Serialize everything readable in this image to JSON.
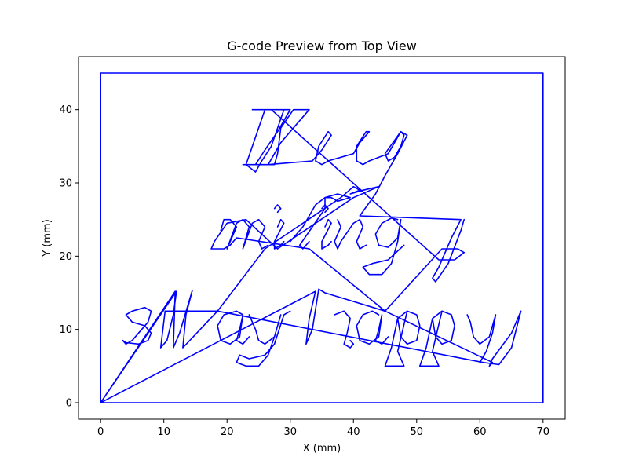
{
  "chart_data": {
    "type": "line",
    "title": "G-code Preview from Top View",
    "xlabel": "X (mm)",
    "ylabel": "Y (mm)",
    "xlim": [
      -3.5,
      73.5
    ],
    "ylim": [
      -2.25,
      47.25
    ],
    "xticks": [
      0,
      10,
      20,
      30,
      40,
      50,
      60,
      70
    ],
    "yticks": [
      0,
      10,
      20,
      30,
      40
    ],
    "grid": false,
    "legend": "none",
    "series_color": "#0000ff",
    "series": [
      {
        "values": [
          [
            0,
            0
          ],
          [
            0,
            45
          ],
          [
            70,
            45
          ],
          [
            70,
            0
          ],
          [
            0,
            0
          ],
          [
            12,
            15.2
          ],
          [
            11.5,
            12
          ],
          [
            10.5,
            8.5
          ],
          [
            9.5,
            7.5
          ],
          [
            10.2,
            12.5
          ],
          [
            18.5,
            12.5
          ],
          [
            13,
            7.5
          ],
          [
            13.5,
            12
          ],
          [
            14.5,
            15.3
          ],
          [
            12.5,
            9.5
          ],
          [
            11.5,
            7.5
          ],
          [
            11.8,
            15.2
          ],
          [
            0,
            0
          ],
          [
            34,
            15.2
          ],
          [
            33,
            11.5
          ],
          [
            32.5,
            8
          ],
          [
            33.5,
            10
          ],
          [
            34.5,
            15.5
          ],
          [
            35.5,
            15
          ],
          [
            45,
            12.5
          ],
          [
            62,
            5.5
          ],
          [
            61.5,
            5
          ],
          [
            62,
            6
          ],
          [
            65,
            9.5
          ],
          [
            66.5,
            12.5
          ],
          [
            65,
            7.5
          ],
          [
            63,
            5.2
          ],
          [
            60.5,
            5.5
          ],
          [
            18.5,
            12.5
          ],
          [
            26,
            21
          ],
          [
            38,
            28
          ],
          [
            40,
            29.5
          ],
          [
            41,
            29
          ],
          [
            39.5,
            28.5
          ],
          [
            41.5,
            29
          ],
          [
            44,
            29.5
          ],
          [
            40,
            28
          ],
          [
            28,
            21
          ],
          [
            23,
            25
          ],
          [
            20,
            24.5
          ],
          [
            18,
            22
          ],
          [
            17.5,
            21
          ],
          [
            19.5,
            21
          ],
          [
            20.5,
            21.5
          ],
          [
            21.5,
            22.5
          ],
          [
            33,
            21
          ],
          [
            45,
            12.5
          ],
          [
            54,
            21
          ],
          [
            56.5,
            21
          ],
          [
            57.5,
            20.5
          ],
          [
            56,
            19.5
          ],
          [
            53.5,
            19.5
          ],
          [
            27,
            40
          ],
          [
            29,
            40
          ],
          [
            27,
            35
          ],
          [
            25.5,
            33
          ],
          [
            24.5,
            31.5
          ],
          [
            23,
            32.5
          ],
          [
            26,
            40
          ],
          [
            24,
            40
          ],
          [
            30,
            40
          ],
          [
            28,
            37
          ],
          [
            26,
            34.5
          ],
          [
            24.5,
            32.5
          ],
          [
            22.5,
            32.5
          ],
          [
            26.5,
            32.5
          ],
          [
            28.5,
            35.5
          ],
          [
            31,
            38
          ],
          [
            33,
            40
          ],
          [
            30.5,
            40
          ],
          [
            28.5,
            37.5
          ],
          [
            28,
            34
          ],
          [
            27.5,
            32.5
          ],
          [
            26.5,
            32.5
          ],
          [
            33.5,
            33
          ],
          [
            35,
            34.5
          ],
          [
            36.5,
            36.5
          ],
          [
            36,
            37
          ],
          [
            34.5,
            35
          ],
          [
            34,
            33
          ],
          [
            35,
            32.5
          ],
          [
            36,
            33
          ],
          [
            40,
            34
          ],
          [
            41,
            35.5
          ],
          [
            42.5,
            37
          ],
          [
            42,
            37
          ],
          [
            40.5,
            35
          ],
          [
            40.5,
            33
          ],
          [
            41.5,
            32.5
          ],
          [
            42.5,
            33
          ],
          [
            45.5,
            34
          ],
          [
            46.5,
            35.5
          ],
          [
            47.5,
            37
          ],
          [
            48,
            36.5
          ],
          [
            47.5,
            35
          ],
          [
            46.5,
            33.5
          ],
          [
            45.5,
            33
          ],
          [
            45,
            34
          ],
          [
            47.5,
            37
          ],
          [
            48.5,
            36.5
          ],
          [
            47,
            34
          ],
          [
            45,
            31
          ],
          [
            43.5,
            28.5
          ],
          [
            41,
            25.5
          ],
          [
            57,
            25
          ],
          [
            55.5,
            22.5
          ],
          [
            53.5,
            18.5
          ],
          [
            52.5,
            17
          ],
          [
            53,
            16.5
          ],
          [
            55,
            19
          ],
          [
            57,
            23.5
          ],
          [
            57.5,
            25
          ]
        ]
      },
      {
        "values": [
          [
            3.5,
            8.5
          ],
          [
            4,
            8
          ],
          [
            5,
            8.5
          ],
          [
            6,
            9.5
          ],
          [
            7.5,
            11
          ],
          [
            8,
            12.5
          ],
          [
            7,
            13
          ],
          [
            5,
            12.5
          ],
          [
            4,
            12
          ],
          [
            5,
            11
          ],
          [
            7,
            10.5
          ],
          [
            8,
            9.5
          ],
          [
            7.5,
            8.5
          ],
          [
            6,
            8
          ],
          [
            4,
            8.2
          ],
          [
            3.5,
            8.5
          ]
        ]
      },
      {
        "values": [
          [
            22.5,
            12
          ],
          [
            21.5,
            12.5
          ],
          [
            19.5,
            12
          ],
          [
            18.5,
            10.5
          ],
          [
            19,
            8.5
          ],
          [
            20.5,
            8
          ],
          [
            22,
            9
          ],
          [
            22.5,
            12
          ],
          [
            22,
            10
          ],
          [
            21.5,
            8.5
          ],
          [
            22.5,
            8
          ],
          [
            23.5,
            9
          ]
        ]
      },
      {
        "values": [
          [
            23.5,
            12
          ],
          [
            24.5,
            10
          ],
          [
            25,
            8.5
          ],
          [
            26,
            8
          ],
          [
            27.5,
            9
          ],
          [
            28.5,
            12
          ],
          [
            27.5,
            9
          ],
          [
            26.5,
            6.5
          ],
          [
            25,
            5
          ],
          [
            23,
            5
          ],
          [
            21.5,
            5.5
          ],
          [
            22,
            6.5
          ],
          [
            23.5,
            6
          ],
          [
            26,
            6.5
          ],
          [
            27.5,
            8
          ],
          [
            29,
            12
          ],
          [
            30,
            12.5
          ]
        ]
      },
      {
        "values": [
          [
            37,
            12
          ],
          [
            38.5,
            12.5
          ],
          [
            39.5,
            11.5
          ],
          [
            39,
            9.5
          ],
          [
            38.5,
            8
          ],
          [
            39.5,
            7.5
          ],
          [
            40,
            8
          ],
          [
            39.5,
            8.5
          ]
        ]
      },
      {
        "values": [
          [
            44,
            12
          ],
          [
            43,
            12.5
          ],
          [
            41.5,
            12
          ],
          [
            40.5,
            10.5
          ],
          [
            41,
            8.5
          ],
          [
            42.5,
            8
          ],
          [
            44,
            9
          ],
          [
            44.5,
            12
          ],
          [
            44,
            10
          ],
          [
            43.5,
            8.5
          ],
          [
            44.5,
            8
          ],
          [
            45.5,
            9
          ]
        ]
      },
      {
        "values": [
          [
            47,
            11.5
          ],
          [
            48.5,
            12.5
          ],
          [
            50,
            12
          ],
          [
            50.5,
            10.5
          ],
          [
            50,
            8.5
          ],
          [
            48.5,
            8
          ],
          [
            47.5,
            9
          ],
          [
            47,
            11.5
          ],
          [
            46,
            7.5
          ],
          [
            45,
            5
          ],
          [
            48,
            5
          ],
          [
            47,
            7
          ],
          [
            48.5,
            12.5
          ]
        ]
      },
      {
        "values": [
          [
            52.5,
            11.5
          ],
          [
            54,
            12.5
          ],
          [
            55.5,
            12
          ],
          [
            56,
            10.5
          ],
          [
            55.5,
            8.5
          ],
          [
            54,
            8
          ],
          [
            53,
            9
          ],
          [
            52.5,
            11.5
          ],
          [
            51.5,
            7.5
          ],
          [
            50.5,
            5
          ],
          [
            53.5,
            5
          ],
          [
            52.5,
            7
          ],
          [
            54,
            12.5
          ]
        ]
      },
      {
        "values": [
          [
            58,
            12
          ],
          [
            58.5,
            11
          ],
          [
            59,
            9
          ],
          [
            60,
            8
          ],
          [
            61.5,
            9
          ],
          [
            62.5,
            12
          ],
          [
            62,
            9.5
          ],
          [
            61,
            7
          ],
          [
            60,
            5.5
          ]
        ]
      },
      {
        "values": [
          [
            19,
            23.5
          ],
          [
            19.5,
            25
          ],
          [
            20.5,
            25
          ],
          [
            21.5,
            24
          ],
          [
            20,
            21
          ],
          [
            21.5,
            24.5
          ],
          [
            22.5,
            25
          ],
          [
            23.5,
            24
          ],
          [
            22.5,
            21
          ],
          [
            24,
            24.5
          ],
          [
            25,
            25
          ],
          [
            26,
            24
          ],
          [
            25,
            22
          ],
          [
            25.5,
            21
          ],
          [
            26.5,
            21.5
          ]
        ]
      },
      {
        "values": [
          [
            28,
            24
          ],
          [
            28.5,
            25
          ],
          [
            29,
            24.5
          ],
          [
            27.5,
            22
          ],
          [
            27.5,
            21
          ],
          [
            28.5,
            21.5
          ],
          [
            29,
            22
          ]
        ]
      },
      {
        "values": [
          [
            27.5,
            26.5
          ],
          [
            28,
            27
          ],
          [
            28.5,
            26.5
          ],
          [
            28,
            26
          ]
        ]
      },
      {
        "values": [
          [
            30,
            22
          ],
          [
            32,
            24
          ],
          [
            34,
            27
          ],
          [
            35.5,
            28
          ],
          [
            35.5,
            26.5
          ],
          [
            33.5,
            24
          ],
          [
            31.5,
            21.5
          ],
          [
            32,
            21
          ],
          [
            33,
            22
          ]
        ]
      },
      {
        "values": [
          [
            35.5,
            24
          ],
          [
            36,
            25
          ],
          [
            36.5,
            24.5
          ],
          [
            35,
            22
          ],
          [
            35,
            21
          ],
          [
            36,
            21.5
          ],
          [
            36.5,
            22
          ]
        ]
      },
      {
        "values": [
          [
            35,
            26.5
          ],
          [
            35.5,
            27
          ],
          [
            36,
            26.5
          ],
          [
            35.5,
            26
          ]
        ]
      },
      {
        "values": [
          [
            35.5,
            28
          ],
          [
            36.5,
            28
          ],
          [
            37.5,
            27.5
          ],
          [
            39.5,
            28
          ],
          [
            37.5,
            28.5
          ],
          [
            35.5,
            28
          ]
        ]
      },
      {
        "values": [
          [
            37.5,
            25
          ],
          [
            38,
            24
          ],
          [
            37,
            22
          ],
          [
            37.5,
            21
          ],
          [
            38,
            22
          ],
          [
            40,
            24.5
          ],
          [
            41,
            25
          ],
          [
            41.5,
            24
          ],
          [
            40.5,
            22
          ],
          [
            41,
            21
          ],
          [
            42,
            21.5
          ]
        ]
      },
      {
        "values": [
          [
            47,
            25
          ],
          [
            46,
            25.2
          ],
          [
            44.5,
            24.5
          ],
          [
            43.5,
            23
          ],
          [
            44,
            21.5
          ],
          [
            45.5,
            21.2
          ],
          [
            47,
            22.5
          ],
          [
            47.5,
            25
          ],
          [
            47,
            22
          ],
          [
            46,
            19
          ],
          [
            44.5,
            17.5
          ],
          [
            42.5,
            17.5
          ],
          [
            41.5,
            18.5
          ],
          [
            43,
            19
          ],
          [
            45.5,
            19.5
          ],
          [
            48,
            21.5
          ]
        ]
      }
    ]
  }
}
